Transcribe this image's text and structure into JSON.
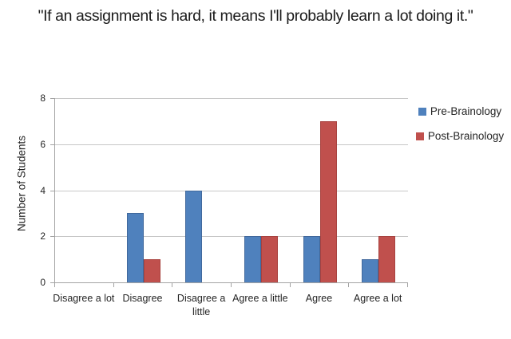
{
  "title": "\"If an assignment is hard, it means I'll probably learn a lot doing it.\"",
  "colors": {
    "pre_series": "#4F81BD",
    "pre_border": "#40689C",
    "post_series": "#C0504D",
    "post_border": "#A8423F",
    "gridline": "#C7C7C7",
    "axis": "#A3A3A3",
    "text": "#252525"
  },
  "chart_data": {
    "type": "bar",
    "title": "\"If an assignment is hard, it means I'll probably learn a lot doing it.\"",
    "categories": [
      "Disagree a lot",
      "Disagree",
      "Disagree a little",
      "Agree a little",
      "Agree",
      "Agree a lot"
    ],
    "series": [
      {
        "name": "Pre-Brainology",
        "color": "#4F81BD",
        "border": "#40689C",
        "values": [
          0,
          3,
          4,
          2,
          2,
          1
        ]
      },
      {
        "name": "Post-Brainology",
        "color": "#C0504D",
        "border": "#A8423F",
        "values": [
          0,
          1,
          0,
          2,
          7,
          2
        ]
      }
    ],
    "xlabel": "",
    "ylabel": "Number of Students",
    "ylim": [
      0,
      8
    ],
    "yticks": [
      0,
      2,
      4,
      6,
      8
    ],
    "grid": true,
    "legend_position": "top-right"
  }
}
